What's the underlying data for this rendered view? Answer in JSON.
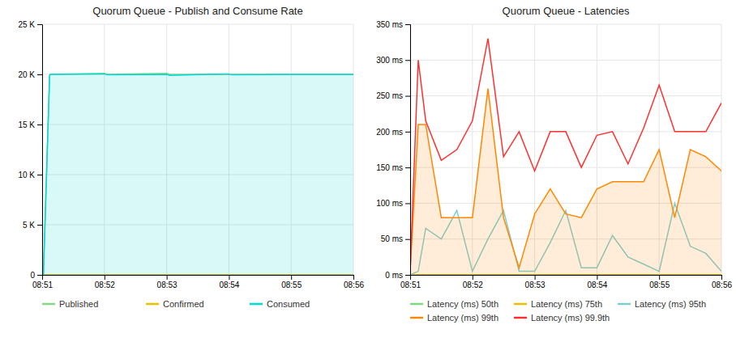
{
  "chart_data": [
    {
      "type": "line",
      "title": "Quorum Queue - Publish and Consume Rate",
      "xlim": [
        0,
        5
      ],
      "xticks": [
        {
          "value": 0,
          "label": "08:51"
        },
        {
          "value": 1,
          "label": "08:52"
        },
        {
          "value": 2,
          "label": "08:53"
        },
        {
          "value": 3,
          "label": "08:54"
        },
        {
          "value": 4,
          "label": "08:55"
        },
        {
          "value": 5,
          "label": "08:56"
        }
      ],
      "ylim": [
        0,
        25000
      ],
      "yticks": [
        0,
        {
          "value": 5000,
          "label": "5 K"
        },
        {
          "value": 10000,
          "label": "10 K"
        },
        {
          "value": 15000,
          "label": "15 K"
        },
        {
          "value": 20000,
          "label": "20 K"
        },
        {
          "value": 25000,
          "label": "25 K"
        }
      ],
      "grid": true,
      "legend": "bottom",
      "series": [
        {
          "name": "Published",
          "color": "#82d882",
          "type": "line",
          "x": [
            0,
            0.02,
            0.12,
            0.13,
            1.0,
            1.05,
            2.0,
            2.05,
            3.0,
            3.05,
            4.0,
            4.05,
            5.0
          ],
          "values": [
            0,
            0,
            19900,
            20000,
            20100,
            20000,
            20100,
            20000,
            20000,
            20000,
            20000,
            20000,
            20000
          ]
        },
        {
          "name": "Confirmed",
          "color": "#e8c000",
          "type": "line",
          "x": [
            0,
            5.0
          ],
          "values": [
            0,
            0
          ]
        },
        {
          "name": "Consumed",
          "color": "#00d8d8",
          "type": "area",
          "x": [
            0,
            0.02,
            0.12,
            0.13,
            1.0,
            1.05,
            2.0,
            2.05,
            3.0,
            3.05,
            4.0,
            4.05,
            5.0
          ],
          "values": [
            0,
            0,
            19900,
            20000,
            20050,
            19950,
            20000,
            19900,
            20050,
            19950,
            20000,
            20000,
            20000
          ]
        }
      ]
    },
    {
      "type": "line",
      "title": "Quorum Queue - Latencies",
      "x": [
        0,
        0.13,
        0.25,
        0.5,
        0.75,
        1.0,
        1.25,
        1.5,
        1.75,
        2.0,
        2.25,
        2.5,
        2.75,
        3.0,
        3.25,
        3.5,
        3.75,
        4.0,
        4.25,
        4.5,
        4.75,
        5.0
      ],
      "xlim": [
        0,
        5
      ],
      "xticks": [
        {
          "value": 0,
          "label": "08:51"
        },
        {
          "value": 1,
          "label": "08:52"
        },
        {
          "value": 2,
          "label": "08:53"
        },
        {
          "value": 3,
          "label": "08:54"
        },
        {
          "value": 4,
          "label": "08:55"
        },
        {
          "value": 5,
          "label": "08:56"
        }
      ],
      "ylim": [
        0,
        350
      ],
      "yticks": [
        {
          "value": 0,
          "label": "0 ms"
        },
        {
          "value": 50,
          "label": "50 ms"
        },
        {
          "value": 100,
          "label": "100 ms"
        },
        {
          "value": 150,
          "label": "150 ms"
        },
        {
          "value": 200,
          "label": "200 ms"
        },
        {
          "value": 250,
          "label": "250 ms"
        },
        {
          "value": 300,
          "label": "300 ms"
        },
        {
          "value": 350,
          "label": "350 ms"
        }
      ],
      "grid": true,
      "legend": "bottom",
      "series": [
        {
          "name": "Latency (ms) 50th",
          "color": "#82d882",
          "type": "line",
          "values": [
            0,
            0,
            0,
            0,
            0,
            0,
            0,
            0,
            0,
            0,
            0,
            0,
            0,
            0,
            0,
            0,
            0,
            0,
            0,
            0,
            0,
            0
          ]
        },
        {
          "name": "Latency (ms) 75th",
          "color": "#e8c000",
          "type": "line",
          "values": [
            0,
            0,
            0,
            0,
            0,
            0,
            0,
            0,
            0,
            0,
            0,
            0,
            0,
            0,
            0,
            0,
            0,
            0,
            0,
            0,
            0,
            0
          ]
        },
        {
          "name": "Latency (ms) 95th",
          "color": "#7ecece",
          "type": "line",
          "values": [
            0,
            5,
            65,
            50,
            90,
            5,
            50,
            90,
            5,
            5,
            45,
            90,
            10,
            10,
            55,
            25,
            15,
            5,
            100,
            40,
            30,
            5
          ]
        },
        {
          "name": "Latency (ms) 99th",
          "color": "#ff8800",
          "type": "area",
          "values": [
            5,
            210,
            210,
            80,
            80,
            80,
            260,
            80,
            10,
            85,
            120,
            85,
            80,
            120,
            130,
            130,
            130,
            175,
            80,
            175,
            165,
            145
          ]
        },
        {
          "name": "Latency (ms) 99.9th",
          "color": "#ff3030",
          "type": "line",
          "values": [
            5,
            300,
            215,
            160,
            175,
            215,
            330,
            165,
            200,
            145,
            200,
            200,
            150,
            195,
            200,
            155,
            205,
            265,
            200,
            200,
            200,
            240
          ]
        }
      ]
    }
  ]
}
